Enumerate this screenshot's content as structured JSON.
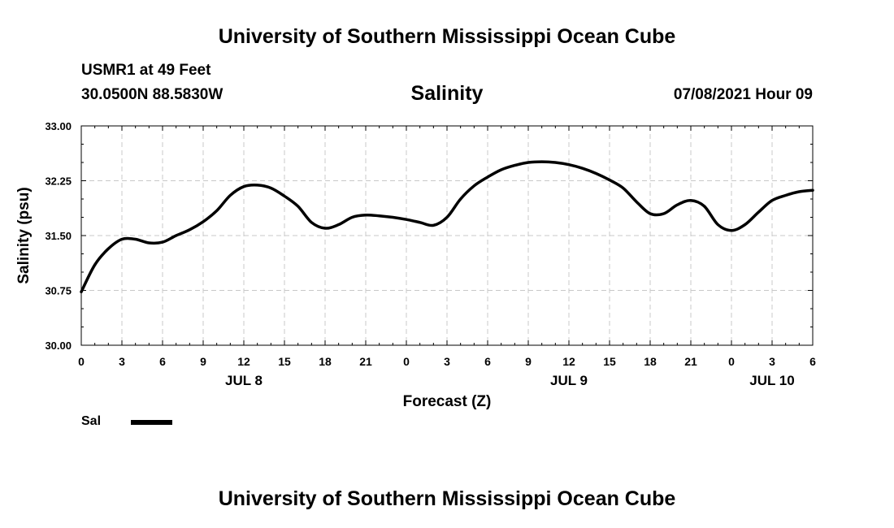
{
  "header": {
    "title": "University of Southern Mississippi Ocean Cube",
    "station": "USMR1 at 49 Feet",
    "coordinates": "30.0500N  88.5830W",
    "parameter": "Salinity",
    "timestamp": "07/08/2021 Hour 09",
    "footer_title": "University of Southern Mississippi Ocean Cube"
  },
  "legend": {
    "label": "Sal"
  },
  "chart_data": {
    "type": "line",
    "title": "Salinity",
    "xlabel": "Forecast (Z)",
    "ylabel": "Salinity (psu)",
    "ylim": [
      30.0,
      33.0
    ],
    "yticks": [
      "30.00",
      "30.75",
      "31.50",
      "32.25",
      "33.00"
    ],
    "xlim": [
      0,
      54
    ],
    "xticks": [
      "0",
      "3",
      "6",
      "9",
      "12",
      "15",
      "18",
      "21",
      "0",
      "3",
      "6",
      "9",
      "12",
      "15",
      "18",
      "21",
      "0",
      "3",
      "6"
    ],
    "date_labels": [
      {
        "label": "JUL 8",
        "hour": 12
      },
      {
        "label": "JUL 9",
        "hour": 36
      },
      {
        "label": "JUL 10",
        "hour": 51
      }
    ],
    "grid": true,
    "legend_position": "bottom-left",
    "series": [
      {
        "name": "Sal",
        "color": "#000000",
        "x": [
          0,
          1,
          2,
          3,
          4,
          5,
          6,
          7,
          8,
          9,
          10,
          11,
          12,
          13,
          14,
          15,
          16,
          17,
          18,
          19,
          20,
          21,
          22,
          23,
          24,
          25,
          26,
          27,
          28,
          29,
          30,
          31,
          32,
          33,
          34,
          35,
          36,
          37,
          38,
          39,
          40,
          41,
          42,
          43,
          44,
          45,
          46,
          47,
          48,
          49,
          50,
          51,
          52,
          53,
          54
        ],
        "y": [
          30.73,
          31.1,
          31.32,
          31.45,
          31.45,
          31.4,
          31.41,
          31.5,
          31.58,
          31.69,
          31.84,
          32.05,
          32.17,
          32.19,
          32.15,
          32.04,
          31.9,
          31.68,
          31.6,
          31.65,
          31.75,
          31.78,
          31.77,
          31.75,
          31.72,
          31.68,
          31.64,
          31.75,
          32.0,
          32.18,
          32.3,
          32.4,
          32.46,
          32.5,
          32.51,
          32.5,
          32.47,
          32.42,
          32.35,
          32.26,
          32.15,
          31.96,
          31.8,
          31.8,
          31.92,
          31.98,
          31.9,
          31.65,
          31.57,
          31.65,
          31.82,
          31.98,
          32.05,
          32.1,
          32.12
        ]
      }
    ]
  }
}
